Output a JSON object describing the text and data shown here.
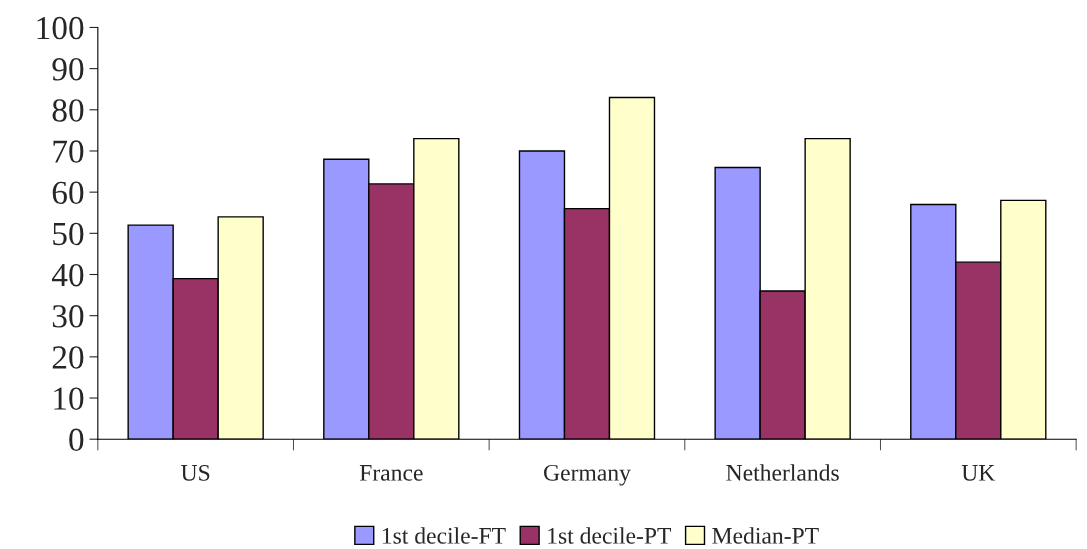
{
  "chart_data": {
    "type": "bar",
    "categories": [
      "US",
      "France",
      "Germany",
      "Netherlands",
      "UK"
    ],
    "series": [
      {
        "name": "1st decile-FT",
        "color": "#9999ff",
        "values": [
          52,
          68,
          70,
          66,
          57
        ]
      },
      {
        "name": "1st decile-PT",
        "color": "#993366",
        "values": [
          39,
          62,
          56,
          36,
          43
        ]
      },
      {
        "name": "Median-PT",
        "color": "#ffffcc",
        "values": [
          54,
          73,
          83,
          73,
          58
        ]
      }
    ],
    "ylim": [
      0,
      100
    ],
    "yticks": [
      0,
      10,
      20,
      30,
      40,
      50,
      60,
      70,
      80,
      90,
      100
    ],
    "grid": false,
    "legend": "bottom"
  }
}
